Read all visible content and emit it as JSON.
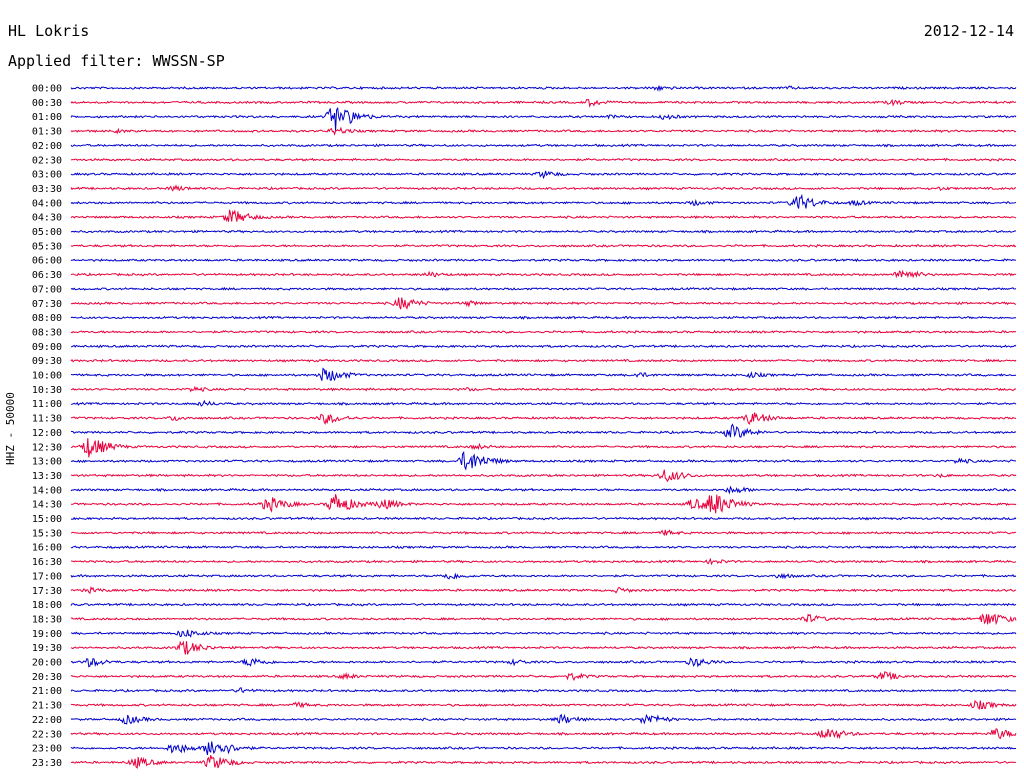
{
  "header": {
    "station": "HL Lokris",
    "date": "2012-12-14",
    "filter": "Applied filter: WWSSN-SP"
  },
  "chart_data": {
    "type": "line",
    "title": "HL Lokris",
    "ylabel": "HHZ - 50000",
    "colors": [
      "#0000cc",
      "#e8003c"
    ],
    "rows": [
      {
        "label": "00:00",
        "events": [
          {
            "t": 0.62,
            "a": 3
          },
          {
            "t": 0.76,
            "a": 2
          }
        ]
      },
      {
        "label": "00:30",
        "events": [
          {
            "t": 0.55,
            "a": 4
          },
          {
            "t": 0.87,
            "a": 3
          }
        ]
      },
      {
        "label": "01:00",
        "events": [
          {
            "t": 0.28,
            "a": 14
          },
          {
            "t": 0.57,
            "a": 2
          },
          {
            "t": 0.63,
            "a": 3
          }
        ]
      },
      {
        "label": "01:30",
        "events": [
          {
            "t": 0.28,
            "a": 4
          },
          {
            "t": 0.05,
            "a": 2
          }
        ]
      },
      {
        "label": "02:00",
        "events": []
      },
      {
        "label": "02:30",
        "events": []
      },
      {
        "label": "03:00",
        "events": [
          {
            "t": 0.5,
            "a": 4
          }
        ]
      },
      {
        "label": "03:30",
        "events": [
          {
            "t": 0.11,
            "a": 3
          },
          {
            "t": 0.92,
            "a": 2
          }
        ]
      },
      {
        "label": "04:00",
        "events": [
          {
            "t": 0.77,
            "a": 9
          },
          {
            "t": 0.66,
            "a": 3
          },
          {
            "t": 0.83,
            "a": 3
          }
        ]
      },
      {
        "label": "04:30",
        "events": [
          {
            "t": 0.17,
            "a": 8
          }
        ]
      },
      {
        "label": "05:00",
        "events": []
      },
      {
        "label": "05:30",
        "events": []
      },
      {
        "label": "06:00",
        "events": []
      },
      {
        "label": "06:30",
        "events": [
          {
            "t": 0.38,
            "a": 3
          },
          {
            "t": 0.88,
            "a": 6
          }
        ]
      },
      {
        "label": "07:00",
        "events": []
      },
      {
        "label": "07:30",
        "events": [
          {
            "t": 0.35,
            "a": 7
          },
          {
            "t": 0.42,
            "a": 3
          }
        ]
      },
      {
        "label": "08:00",
        "events": []
      },
      {
        "label": "08:30",
        "events": []
      },
      {
        "label": "09:00",
        "events": []
      },
      {
        "label": "09:30",
        "events": []
      },
      {
        "label": "10:00",
        "events": [
          {
            "t": 0.27,
            "a": 8
          },
          {
            "t": 0.6,
            "a": 3
          },
          {
            "t": 0.72,
            "a": 3
          }
        ]
      },
      {
        "label": "10:30",
        "events": [
          {
            "t": 0.13,
            "a": 3
          },
          {
            "t": 0.42,
            "a": 2
          }
        ]
      },
      {
        "label": "11:00",
        "events": [
          {
            "t": 0.14,
            "a": 3
          }
        ]
      },
      {
        "label": "11:30",
        "events": [
          {
            "t": 0.27,
            "a": 6
          },
          {
            "t": 0.72,
            "a": 7
          },
          {
            "t": 0.11,
            "a": 3
          }
        ]
      },
      {
        "label": "12:00",
        "events": [
          {
            "t": 0.7,
            "a": 8
          }
        ]
      },
      {
        "label": "12:30",
        "events": [
          {
            "t": 0.02,
            "a": 11
          },
          {
            "t": 0.43,
            "a": 3
          }
        ]
      },
      {
        "label": "13:00",
        "events": [
          {
            "t": 0.42,
            "a": 12
          },
          {
            "t": 0.94,
            "a": 3
          }
        ]
      },
      {
        "label": "13:30",
        "events": [
          {
            "t": 0.63,
            "a": 7
          },
          {
            "t": 0.92,
            "a": 2
          }
        ]
      },
      {
        "label": "14:00",
        "events": [
          {
            "t": 0.7,
            "a": 4
          }
        ]
      },
      {
        "label": "14:30",
        "events": [
          {
            "t": 0.21,
            "a": 8
          },
          {
            "t": 0.28,
            "a": 11
          },
          {
            "t": 0.33,
            "a": 6
          },
          {
            "t": 0.66,
            "a": 6
          },
          {
            "t": 0.68,
            "a": 13
          }
        ]
      },
      {
        "label": "15:00",
        "events": []
      },
      {
        "label": "15:30",
        "events": [
          {
            "t": 0.63,
            "a": 3
          }
        ]
      },
      {
        "label": "16:00",
        "events": []
      },
      {
        "label": "16:30",
        "events": [
          {
            "t": 0.68,
            "a": 3
          }
        ]
      },
      {
        "label": "17:00",
        "events": [
          {
            "t": 0.4,
            "a": 4
          },
          {
            "t": 0.75,
            "a": 3
          }
        ]
      },
      {
        "label": "17:30",
        "events": [
          {
            "t": 0.02,
            "a": 3
          },
          {
            "t": 0.58,
            "a": 3
          }
        ]
      },
      {
        "label": "18:00",
        "events": []
      },
      {
        "label": "18:30",
        "events": [
          {
            "t": 0.78,
            "a": 5
          },
          {
            "t": 0.97,
            "a": 8
          }
        ]
      },
      {
        "label": "19:00",
        "events": [
          {
            "t": 0.12,
            "a": 5
          }
        ]
      },
      {
        "label": "19:30",
        "events": [
          {
            "t": 0.12,
            "a": 8
          }
        ]
      },
      {
        "label": "20:00",
        "events": [
          {
            "t": 0.02,
            "a": 5
          },
          {
            "t": 0.19,
            "a": 5
          },
          {
            "t": 0.47,
            "a": 3
          },
          {
            "t": 0.66,
            "a": 5
          }
        ]
      },
      {
        "label": "20:30",
        "events": [
          {
            "t": 0.29,
            "a": 3
          },
          {
            "t": 0.53,
            "a": 4
          },
          {
            "t": 0.86,
            "a": 5
          }
        ]
      },
      {
        "label": "21:00",
        "events": [
          {
            "t": 0.18,
            "a": 3
          }
        ]
      },
      {
        "label": "21:30",
        "events": [
          {
            "t": 0.24,
            "a": 3
          },
          {
            "t": 0.96,
            "a": 5
          }
        ]
      },
      {
        "label": "22:00",
        "events": [
          {
            "t": 0.06,
            "a": 5
          },
          {
            "t": 0.52,
            "a": 5
          },
          {
            "t": 0.61,
            "a": 6
          }
        ]
      },
      {
        "label": "22:30",
        "events": [
          {
            "t": 0.8,
            "a": 7
          },
          {
            "t": 0.98,
            "a": 6
          }
        ]
      },
      {
        "label": "23:00",
        "events": [
          {
            "t": 0.11,
            "a": 6
          },
          {
            "t": 0.15,
            "a": 11
          }
        ]
      },
      {
        "label": "23:30",
        "events": [
          {
            "t": 0.07,
            "a": 6
          },
          {
            "t": 0.15,
            "a": 8
          }
        ]
      }
    ]
  }
}
